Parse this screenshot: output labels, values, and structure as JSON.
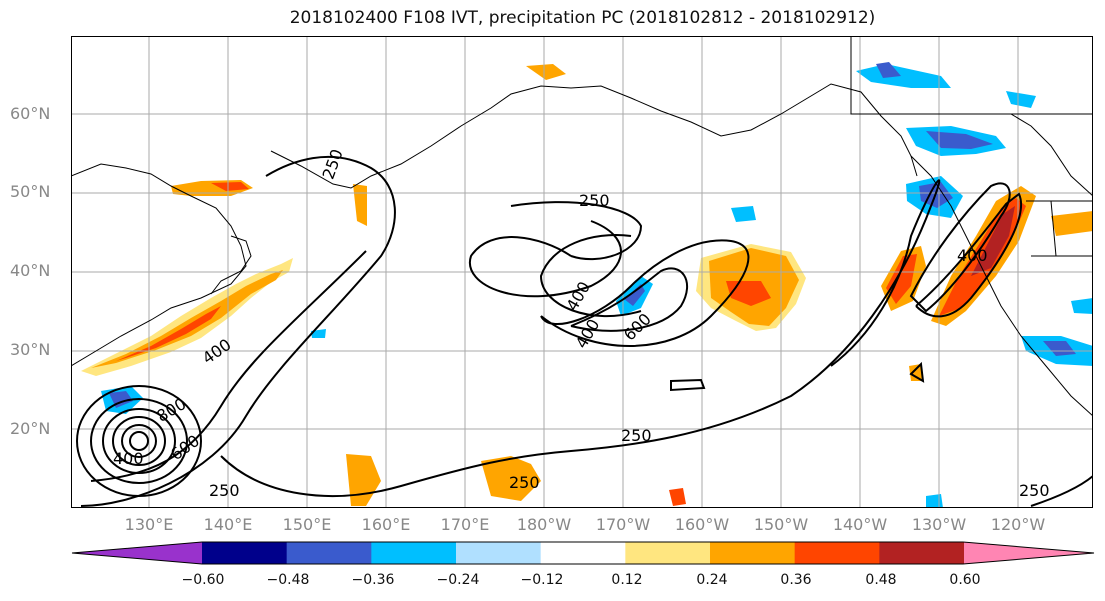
{
  "title": "2018102400 F108 IVT, precipitation PC (2018102812 - 2018102912)",
  "axes": {
    "lat_labels": [
      "60°N",
      "50°N",
      "40°N",
      "30°N",
      "20°N"
    ],
    "lon_labels": [
      "130°E",
      "140°E",
      "150°E",
      "160°E",
      "170°E",
      "180°W",
      "170°W",
      "160°W",
      "150°W",
      "140°W",
      "130°W",
      "120°W"
    ]
  },
  "contour_labels": [
    "250",
    "250",
    "250",
    "250",
    "250",
    "250",
    "400",
    "400",
    "400",
    "400",
    "400",
    "600",
    "600",
    "800"
  ],
  "colorbar": {
    "ticks": [
      "−0.60",
      "−0.48",
      "−0.36",
      "−0.24",
      "−0.12",
      "0.12",
      "0.24",
      "0.36",
      "0.48",
      "0.60"
    ],
    "colors": [
      "#9932CC",
      "#00008B",
      "#3A5BCD",
      "#00BFFF",
      "#B0E0FF",
      "#FFFFFF",
      "#FFE680",
      "#FFA500",
      "#FF4500",
      "#B22222",
      "#FF85B3"
    ]
  },
  "chart_data": {
    "type": "contour map",
    "title": "2018102400 F108 IVT, precipitation PC (2018102812 - 2018102912)",
    "contour_field": "IVT",
    "contour_levels": [
      250,
      400,
      600,
      800
    ],
    "shaded_field": "precipitation PC",
    "shading_levels": [
      -0.6,
      -0.48,
      -0.36,
      -0.24,
      -0.12,
      0.12,
      0.24,
      0.36,
      0.48,
      0.6
    ],
    "lat_range": [
      10,
      70
    ],
    "lon_labels_shown": [
      "130°E",
      "140°E",
      "150°E",
      "160°E",
      "170°E",
      "180°W",
      "170°W",
      "160°W",
      "150°W",
      "140°W",
      "130°W",
      "120°W"
    ],
    "grid": true
  }
}
